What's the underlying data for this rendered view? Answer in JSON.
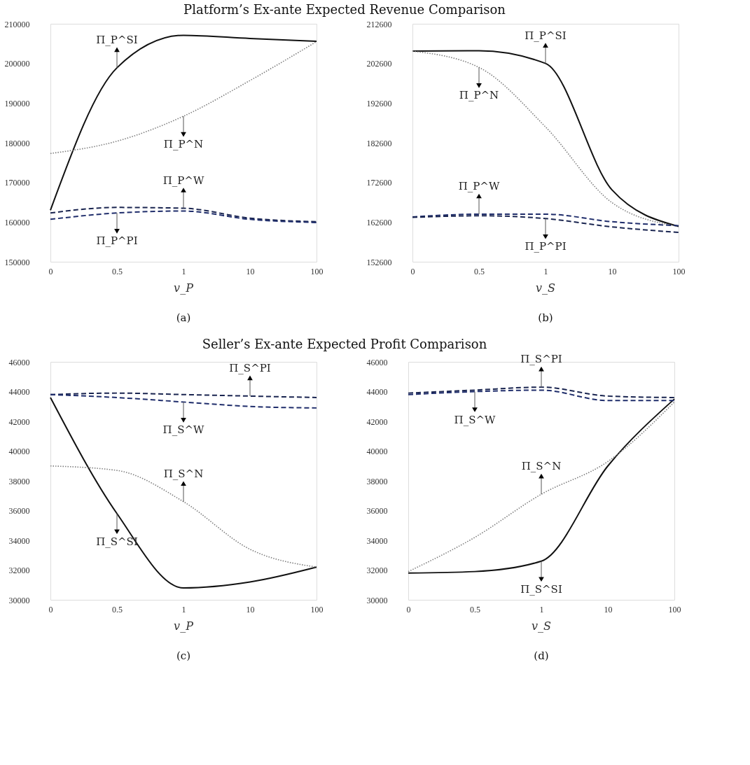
{
  "chart_data": [
    {
      "type": "line",
      "title": "Platform’s Ex-ante Expected Revenue Comparison",
      "xlabel": "v_P",
      "categories": [
        "0",
        "0.5",
        "1",
        "10",
        "100"
      ],
      "ylim": [
        150000,
        210000
      ],
      "yticks": [
        150000,
        160000,
        170000,
        180000,
        190000,
        200000,
        210000
      ],
      "grid": false,
      "series": [
        {
          "color": "#111111",
          "line_style": "solid",
          "values": [
            163000,
            198900,
            207100,
            206300,
            205600
          ]
        },
        {
          "color": "#7f7f7f",
          "line_style": "dotted",
          "values": [
            177300,
            180400,
            186700,
            195700,
            205500
          ]
        },
        {
          "color": "#1a2550",
          "line_style": "dashed",
          "values": [
            162300,
            163700,
            163500,
            161000,
            160100
          ]
        },
        {
          "color": "#1f2d6b",
          "line_style": "dashed",
          "values": [
            160700,
            162300,
            162800,
            160700,
            159900
          ]
        }
      ],
      "annotations": [
        {
          "text": "Π_P^SI",
          "x": "0.5",
          "y": 198900
        },
        {
          "text": "Π_P^N",
          "x": "1",
          "y": 186700
        },
        {
          "text": "Π_P^W",
          "x": "1",
          "y": 163500
        },
        {
          "text": "Π_P^PI",
          "x": "0.5",
          "y": 162300
        },
        "(a)"
      ]
    },
    {
      "type": "line",
      "xlabel": "v_S",
      "categories": [
        "0",
        "0.5",
        "1",
        "10",
        "100"
      ],
      "ylim": [
        152600,
        212600
      ],
      "yticks": [
        152600,
        162600,
        172600,
        182600,
        192600,
        202600,
        212600
      ],
      "grid": false,
      "series": [
        {
          "color": "#111111",
          "line_style": "solid",
          "values": [
            205700,
            205800,
            202600,
            170700,
            161500
          ]
        },
        {
          "color": "#7f7f7f",
          "line_style": "dotted",
          "values": [
            205700,
            201600,
            186600,
            167500,
            161500
          ]
        },
        {
          "color": "#1f2d6b",
          "line_style": "dashed",
          "values": [
            163900,
            164600,
            164600,
            162700,
            161700
          ]
        },
        {
          "color": "#1a2550",
          "line_style": "dashed",
          "values": [
            163800,
            164200,
            163500,
            161400,
            160000
          ]
        }
      ],
      "annotations": [
        {
          "text": "Π_P^SI",
          "x": "1",
          "y": 202600
        },
        {
          "text": "Π_P^N",
          "x": "0.5",
          "y": 201600
        },
        {
          "text": "Π_P^W",
          "x": "0.5",
          "y": 164600
        },
        {
          "text": "Π_P^PI",
          "x": "1",
          "y": 163500
        },
        "(b)"
      ]
    },
    {
      "type": "line",
      "title": "Seller’s Ex-ante Expected Profit Comparison",
      "xlabel": "v_P",
      "categories": [
        "0",
        "0.5",
        "1",
        "10",
        "100"
      ],
      "ylim": [
        30000,
        46000
      ],
      "yticks": [
        30000,
        32000,
        34000,
        36000,
        38000,
        40000,
        42000,
        44000,
        46000
      ],
      "grid": false,
      "series": [
        {
          "color": "#111111",
          "line_style": "solid",
          "values": [
            43600,
            35800,
            30800,
            31200,
            32200
          ]
        },
        {
          "color": "#7f7f7f",
          "line_style": "dotted",
          "values": [
            39000,
            38700,
            36600,
            33400,
            32200
          ]
        },
        {
          "color": "#1a2550",
          "line_style": "dashed",
          "values": [
            43800,
            43900,
            43800,
            43700,
            43600
          ]
        },
        {
          "color": "#1f2d6b",
          "line_style": "dashed",
          "values": [
            43800,
            43600,
            43300,
            43000,
            42900
          ]
        }
      ],
      "annotations": [
        {
          "text": "Π_S^PI",
          "x": "10",
          "y": 43700
        },
        {
          "text": "Π_S^W",
          "x": "1",
          "y": 43300
        },
        {
          "text": "Π_S^N",
          "x": "1",
          "y": 36600
        },
        {
          "text": "Π_S^SI",
          "x": "0.5",
          "y": 35800
        },
        "(c)"
      ]
    },
    {
      "type": "line",
      "xlabel": "v_S",
      "categories": [
        "0",
        "0.5",
        "1",
        "10",
        "100"
      ],
      "ylim": [
        30000,
        46000
      ],
      "yticks": [
        30000,
        32000,
        34000,
        36000,
        38000,
        40000,
        42000,
        44000,
        46000
      ],
      "grid": false,
      "series": [
        {
          "color": "#111111",
          "line_style": "solid",
          "values": [
            31800,
            31900,
            32600,
            39000,
            43500
          ]
        },
        {
          "color": "#7f7f7f",
          "line_style": "dotted",
          "values": [
            31900,
            34200,
            37100,
            39300,
            43300
          ]
        },
        {
          "color": "#1a2550",
          "line_style": "dashed",
          "values": [
            43900,
            44100,
            44300,
            43700,
            43600
          ]
        },
        {
          "color": "#1f2d6b",
          "line_style": "dashed",
          "values": [
            43800,
            44000,
            44100,
            43400,
            43400
          ]
        }
      ],
      "annotations": [
        {
          "text": "Π_S^PI",
          "x": "1",
          "y": 44300
        },
        {
          "text": "Π_S^W",
          "x": "0.5",
          "y": 44000
        },
        {
          "text": "Π_S^N",
          "x": "1",
          "y": 37100
        },
        {
          "text": "Π_S^SI",
          "x": "1",
          "y": 32600
        },
        "(d)"
      ]
    }
  ]
}
